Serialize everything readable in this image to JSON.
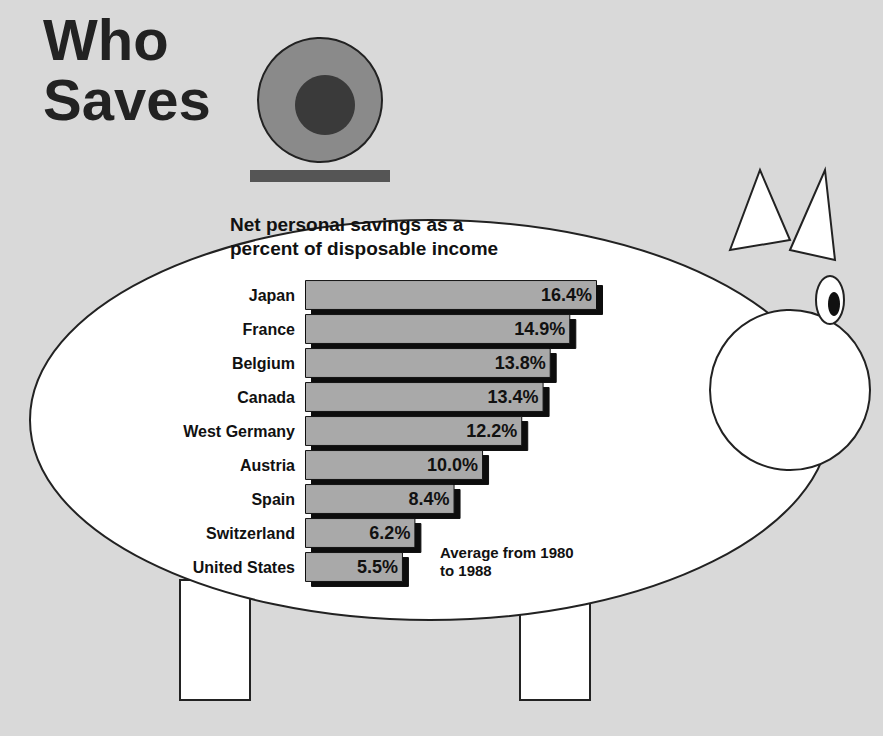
{
  "chart_data": {
    "type": "bar",
    "orientation": "horizontal",
    "title": "Who Saves",
    "subtitle": "Net personal savings as a percent of disposable income",
    "annotation": "Average from 1980 to 1988",
    "categories": [
      "Japan",
      "France",
      "Belgium",
      "Canada",
      "West Germany",
      "Austria",
      "Spain",
      "Switzerland",
      "United States"
    ],
    "values": [
      16.4,
      14.9,
      13.8,
      13.4,
      12.2,
      10.0,
      8.4,
      6.2,
      5.5
    ],
    "value_labels": [
      "16.4%",
      "14.9%",
      "13.8%",
      "13.4%",
      "12.2%",
      "10.0%",
      "8.4%",
      "6.2%",
      "5.5%"
    ],
    "color": "#a9a9a9",
    "xlim": [
      0,
      16.4
    ],
    "data_labels": true,
    "tick_labels": "y",
    "grid": false
  }
}
